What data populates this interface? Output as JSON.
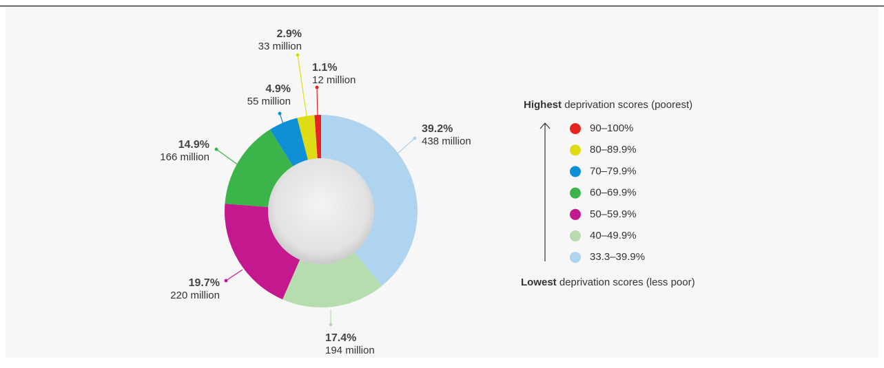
{
  "chart_data": {
    "type": "pie",
    "categories": [
      "90–100%",
      "80–89.9%",
      "70–79.9%",
      "60–69.9%",
      "50–59.9%",
      "40–49.9%",
      "33.3–39.9%"
    ],
    "values": [
      1.1,
      2.9,
      4.9,
      14.9,
      19.7,
      17.4,
      39.2
    ],
    "value_labels": [
      "1.1%",
      "2.9%",
      "4.9%",
      "14.9%",
      "19.7%",
      "17.4%",
      "39.2%"
    ],
    "counts": [
      12,
      33,
      55,
      166,
      220,
      194,
      438
    ],
    "count_labels": [
      "12 million",
      "33 million",
      "55 million",
      "166 million",
      "220 million",
      "194 million",
      "438 million"
    ],
    "colors": [
      "#e52421",
      "#dfdc17",
      "#0f8fd6",
      "#3bb54a",
      "#c4188f",
      "#b6dcb0",
      "#aed4f0"
    ],
    "legend_top": {
      "bold": "Highest",
      "rest": "deprivation scores (poorest)"
    },
    "legend_bottom": {
      "bold": "Lowest",
      "rest": "deprivation scores (less poor)"
    }
  }
}
